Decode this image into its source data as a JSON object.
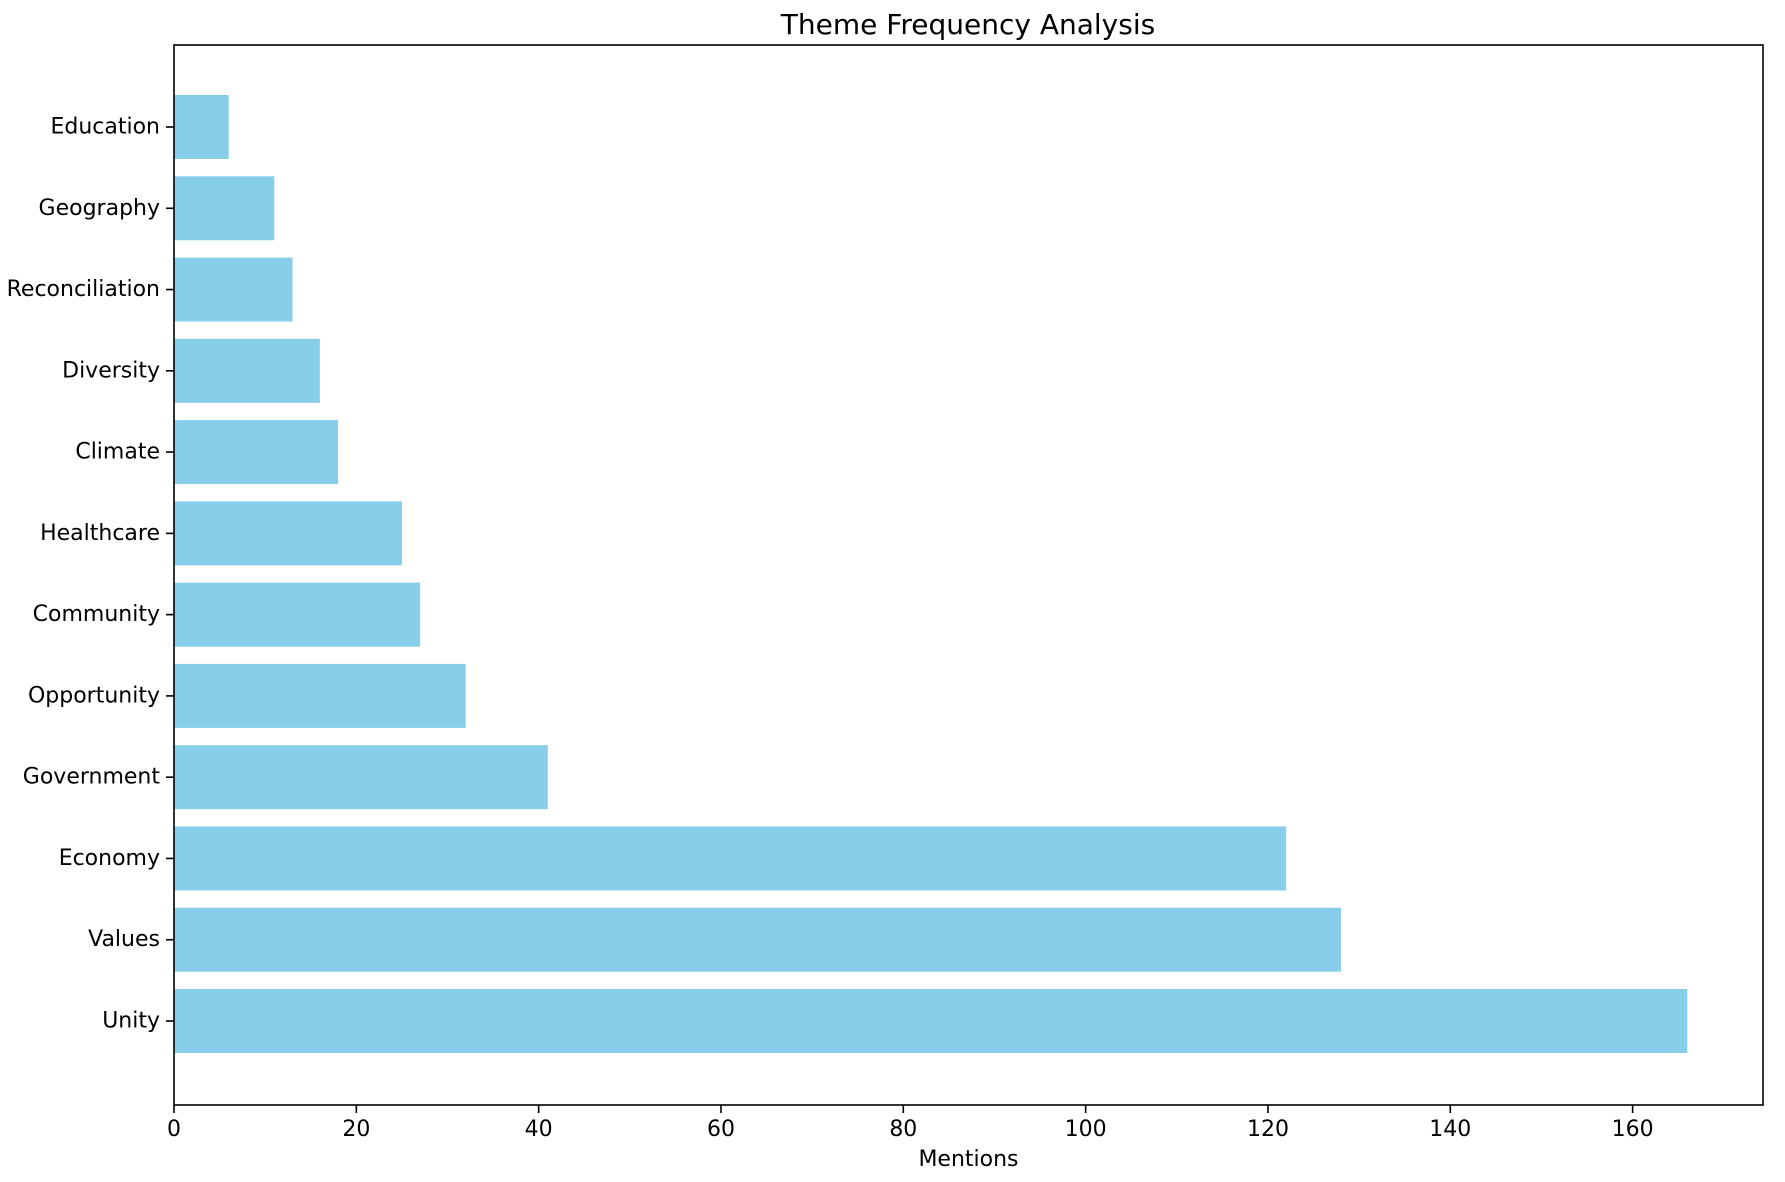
{
  "chart_data": {
    "type": "bar",
    "orientation": "horizontal",
    "title": "Theme Frequency Analysis",
    "xlabel": "Mentions",
    "ylabel": "",
    "categories": [
      "Unity",
      "Values",
      "Economy",
      "Government",
      "Opportunity",
      "Community",
      "Healthcare",
      "Climate",
      "Diversity",
      "Reconciliation",
      "Geography",
      "Education"
    ],
    "values": [
      166,
      128,
      122,
      41,
      32,
      27,
      25,
      18,
      16,
      13,
      11,
      6
    ],
    "xlim": [
      0,
      174.3
    ],
    "xticks": [
      "0",
      "20",
      "40",
      "60",
      "80",
      "100",
      "120",
      "140",
      "160"
    ],
    "bar_color": "#87CEEB",
    "grid": false,
    "legend": "none"
  }
}
